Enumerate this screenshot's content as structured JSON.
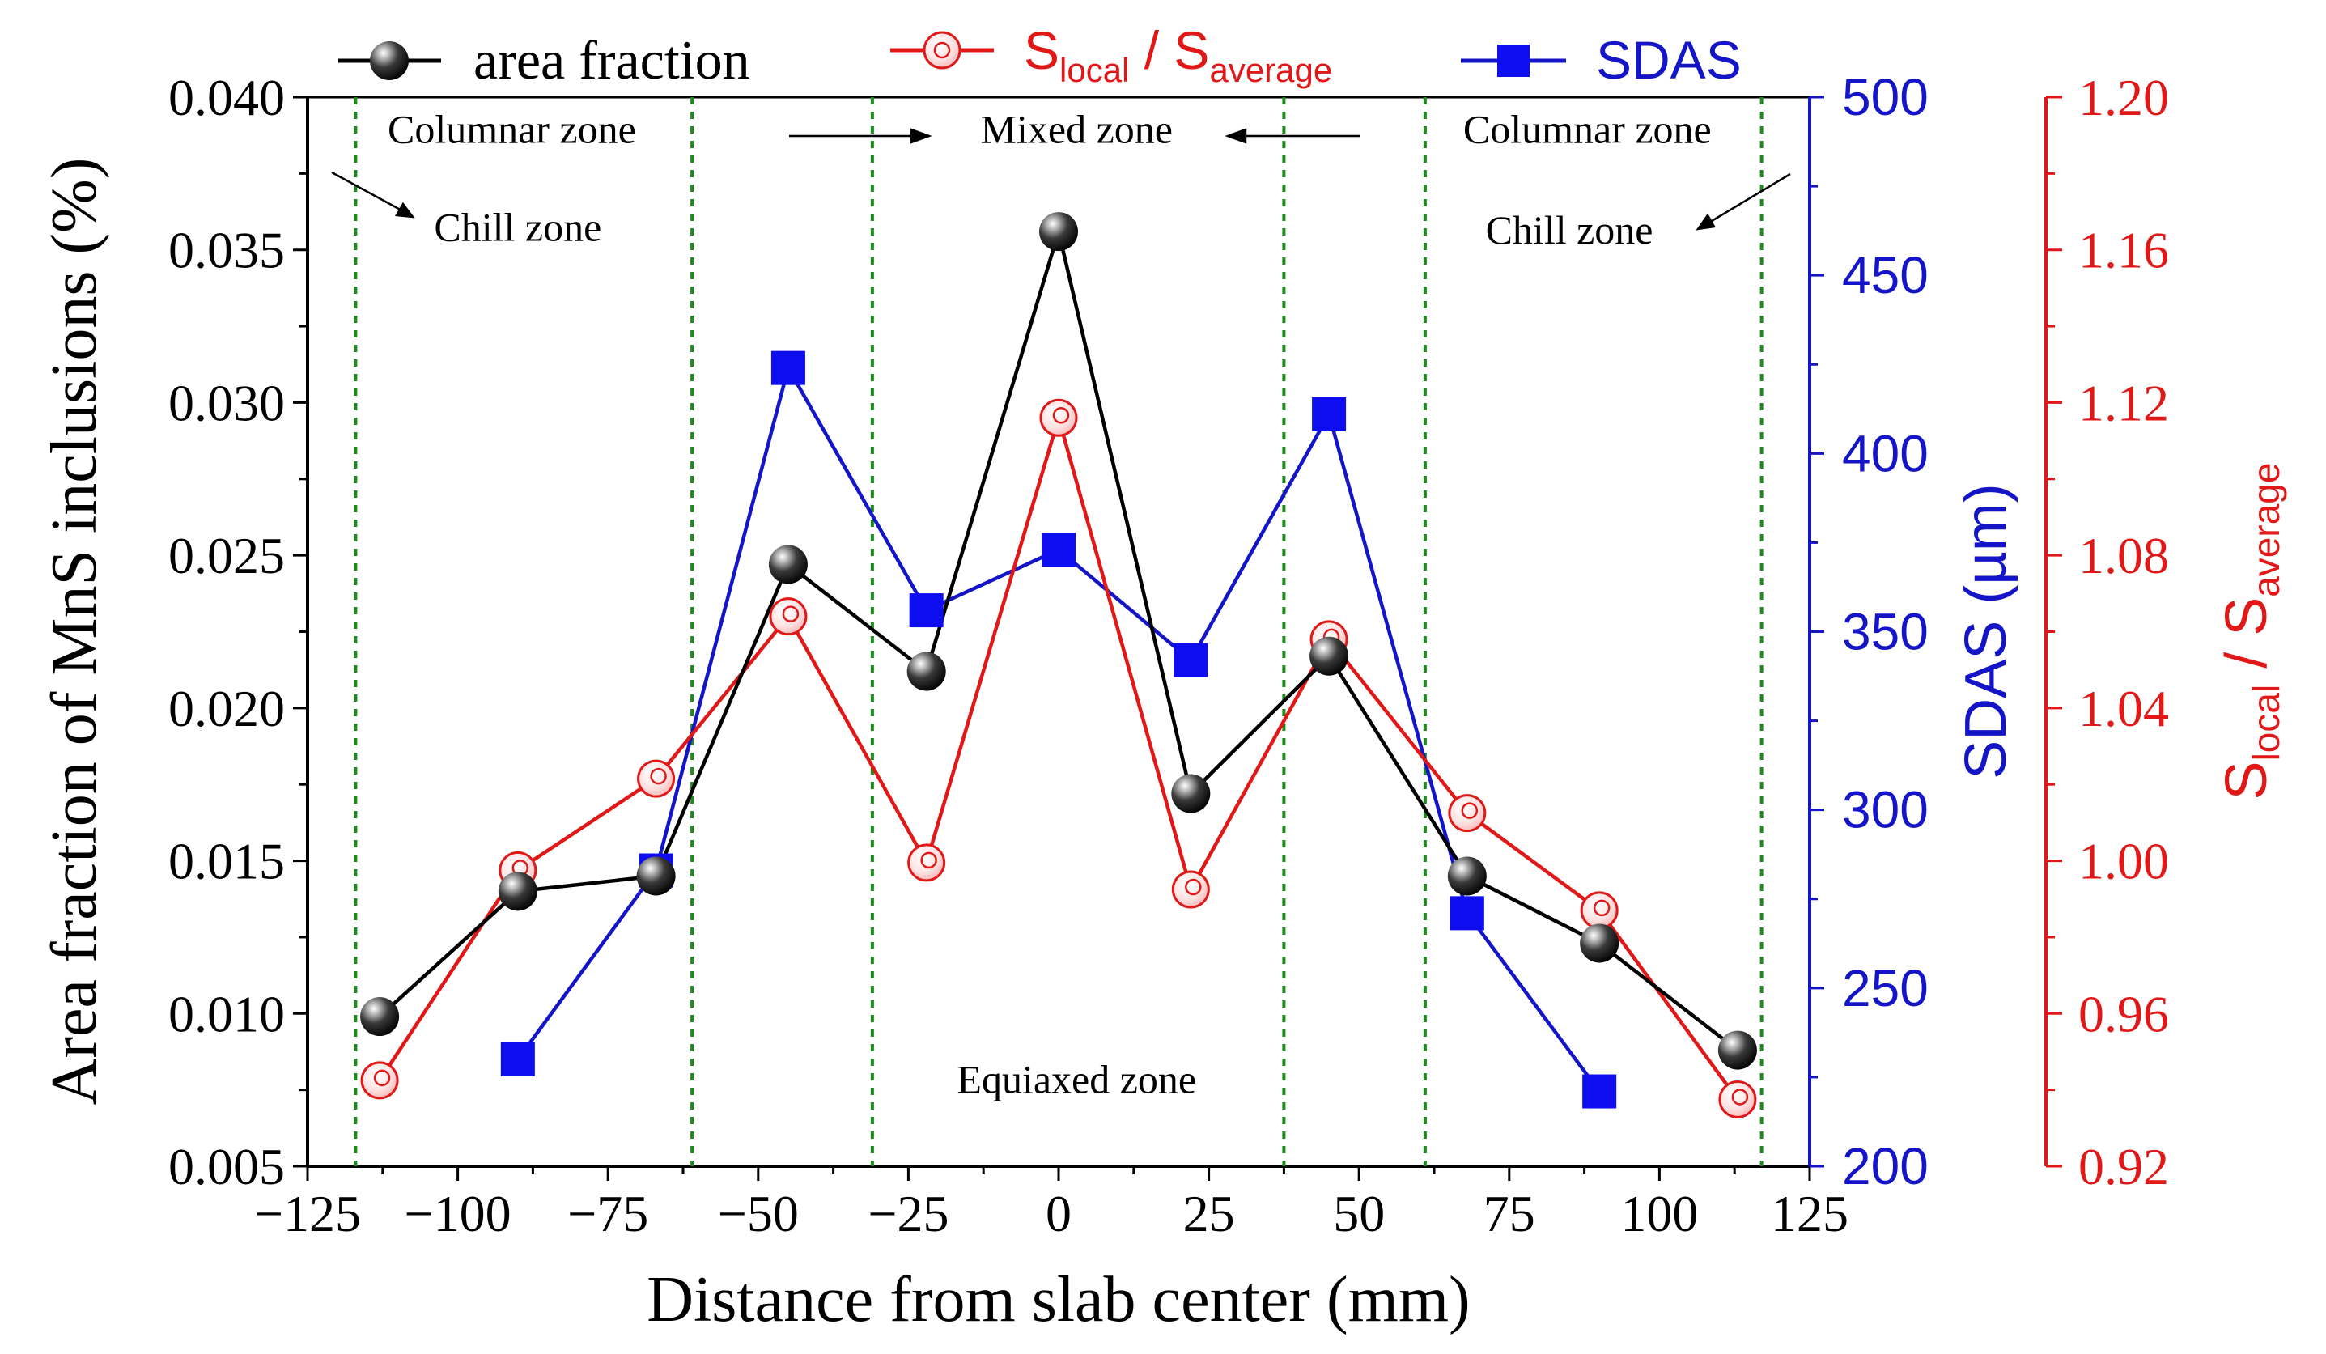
{
  "chart_data": {
    "type": "line",
    "xlabel": "Distance from slab center (mm)",
    "xlim": [
      -125,
      125
    ],
    "xticks": [
      -125,
      -100,
      -75,
      -50,
      -25,
      0,
      25,
      50,
      75,
      100,
      125
    ],
    "xtick_labels": [
      "−125",
      "−100",
      "−75",
      "−50",
      "−25",
      "0",
      "25",
      "50",
      "75",
      "100",
      "125"
    ],
    "axes": {
      "left": {
        "label": "Area fraction of MnS inclusions (%)",
        "lim": [
          0.005,
          0.04
        ],
        "ticks": [
          0.005,
          0.01,
          0.015,
          0.02,
          0.025,
          0.03,
          0.035,
          0.04
        ],
        "tick_labels": [
          "0.005",
          "0.010",
          "0.015",
          "0.020",
          "0.025",
          "0.030",
          "0.035",
          "0.040"
        ],
        "color": "#000000"
      },
      "right_sdas": {
        "label": "SDAS (µm)",
        "lim": [
          200,
          500
        ],
        "ticks": [
          200,
          250,
          300,
          350,
          400,
          450,
          500
        ],
        "tick_labels": [
          "200",
          "250",
          "300",
          "350",
          "400",
          "450",
          "500"
        ],
        "color": "#1515c8"
      },
      "right_ratio": {
        "label_main": "S",
        "label_sub1": "local",
        "label_mid": " / S",
        "label_sub2": "average",
        "lim": [
          0.92,
          1.2
        ],
        "ticks": [
          0.92,
          0.96,
          1.0,
          1.04,
          1.08,
          1.12,
          1.16,
          1.2
        ],
        "tick_labels": [
          "0.92",
          "0.96",
          "1.00",
          "1.04",
          "1.08",
          "1.12",
          "1.16",
          "1.20"
        ],
        "color": "#e01818"
      }
    },
    "series": [
      {
        "name": "area fraction",
        "axis": "left",
        "color": "#000000",
        "marker": "sphere",
        "x": [
          -113,
          -90,
          -67,
          -45,
          -22,
          0,
          22,
          45,
          68,
          90,
          113
        ],
        "y": [
          0.0099,
          0.014,
          0.0145,
          0.0247,
          0.0212,
          0.0356,
          0.0172,
          0.0217,
          0.0145,
          0.0123,
          0.0088
        ]
      },
      {
        "name_main": "S",
        "name_sub1": "local",
        "name_mid": " / S",
        "name_sub2": "average",
        "axis": "right_ratio",
        "color": "#e01818",
        "marker": "open-circle",
        "x": [
          -113,
          -90,
          -67,
          -45,
          -22,
          0,
          22,
          45,
          68,
          90,
          113
        ],
        "y": [
          0.9425,
          0.9975,
          1.0215,
          1.064,
          0.9995,
          1.116,
          0.9925,
          1.058,
          1.0125,
          0.987,
          0.9375
        ]
      },
      {
        "name": "SDAS",
        "axis": "right_sdas",
        "color": "#1515c8",
        "marker": "square",
        "x": [
          -90,
          -67,
          -45,
          -22,
          0,
          22,
          45,
          68,
          90
        ],
        "y": [
          230,
          283,
          424,
          356,
          373,
          342,
          411,
          271,
          221
        ]
      }
    ],
    "zone_boundaries": [
      -117,
      -61,
      -31,
      37.5,
      61,
      117
    ],
    "zone_labels": [
      {
        "text": "Columnar zone",
        "x": -91,
        "y": 0.0385
      },
      {
        "text": "Chill zone",
        "x": -90,
        "y": 0.0353
      },
      {
        "text": "Mixed zone",
        "x": 3,
        "y": 0.0385
      },
      {
        "text": "Columnar zone",
        "x": 88,
        "y": 0.0385
      },
      {
        "text": "Chill zone",
        "x": 85,
        "y": 0.0352
      },
      {
        "text": "Equiaxed zone",
        "x": 3,
        "y": 0.0074
      }
    ],
    "legend_position": "top"
  }
}
